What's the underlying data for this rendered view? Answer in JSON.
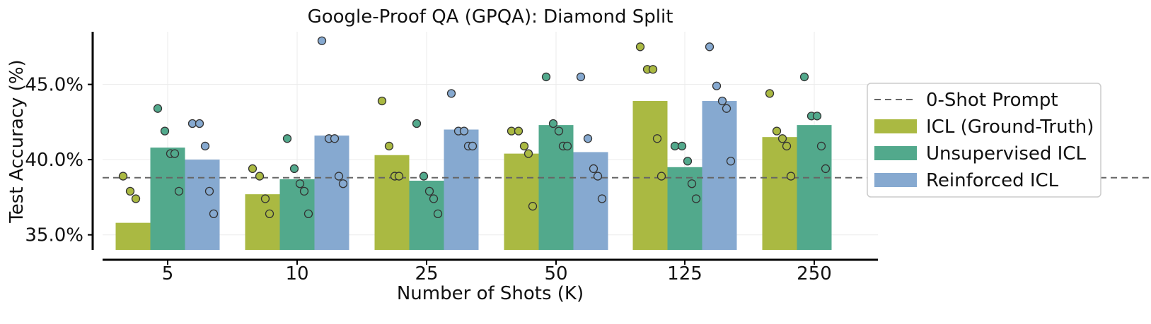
{
  "chart_data": {
    "type": "bar",
    "title": "Google-Proof QA (GPQA): Diamond Split",
    "xlabel": "Number of Shots (K)",
    "ylabel": "Test Accuracy (%)",
    "categories": [
      "5",
      "10",
      "25",
      "50",
      "125",
      "250"
    ],
    "ylim": [
      34.0,
      48.5
    ],
    "yticks": [
      35.0,
      40.0,
      45.0
    ],
    "ytick_labels": [
      "35.0%",
      "40.0%",
      "45.0%"
    ],
    "grid": true,
    "legend_position": "right",
    "baseline": {
      "name": "0-Shot Prompt",
      "value": 38.8,
      "color": "#666666"
    },
    "series": [
      {
        "name": "ICL (Ground-Truth)",
        "color": "#aab942",
        "values": [
          35.8,
          37.7,
          40.3,
          40.4,
          43.9,
          41.5
        ],
        "points": [
          [
            38.9,
            37.9,
            37.4
          ],
          [
            39.4,
            38.9,
            37.4,
            36.4
          ],
          [
            43.9,
            40.9,
            38.9,
            38.9
          ],
          [
            41.9,
            41.9,
            40.9,
            40.4,
            36.9
          ],
          [
            47.5,
            46.0,
            46.0,
            41.4,
            38.9
          ],
          [
            44.4,
            41.9,
            41.4,
            40.9,
            38.9
          ]
        ]
      },
      {
        "name": "Unsupervised ICL",
        "color": "#52a98c",
        "values": [
          40.8,
          38.7,
          38.6,
          42.3,
          39.5,
          42.3
        ],
        "points": [
          [
            43.4,
            41.9,
            40.4,
            40.4,
            37.9
          ],
          [
            41.4,
            39.4,
            38.4,
            37.9,
            36.4
          ],
          [
            42.4,
            38.9,
            37.9,
            37.4,
            36.4
          ],
          [
            45.5,
            42.4,
            41.9,
            40.9,
            40.9
          ],
          [
            40.9,
            40.9,
            39.9,
            38.4,
            37.4
          ],
          [
            45.5,
            42.9,
            42.9,
            40.9,
            39.4
          ]
        ]
      },
      {
        "name": "Reinforced ICL",
        "color": "#86a9d0",
        "values": [
          40.0,
          41.6,
          42.0,
          40.5,
          43.9,
          null
        ],
        "points": [
          [
            42.4,
            42.4,
            40.9,
            37.9,
            36.4
          ],
          [
            47.9,
            41.4,
            41.4,
            38.9,
            38.4
          ],
          [
            44.4,
            41.9,
            41.9,
            40.9,
            40.9
          ],
          [
            45.5,
            41.4,
            39.4,
            38.9,
            37.4
          ],
          [
            47.5,
            44.9,
            43.9,
            43.4,
            39.9
          ],
          []
        ]
      }
    ]
  }
}
